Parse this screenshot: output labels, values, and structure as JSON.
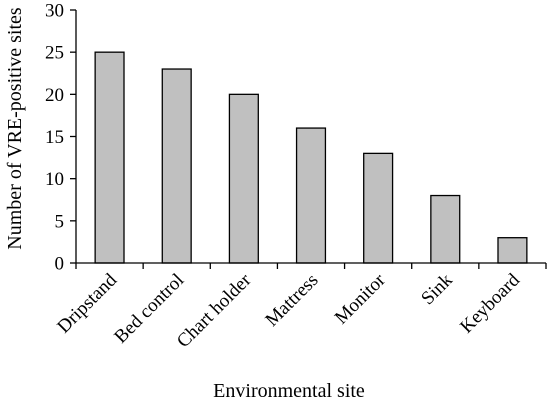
{
  "chart_data": {
    "type": "bar",
    "categories": [
      "Dripstand",
      "Bed control",
      "Chart holder",
      "Mattress",
      "Monitor",
      "Sink",
      "Keyboard"
    ],
    "values": [
      25,
      23,
      20,
      16,
      13,
      8,
      3
    ],
    "xlabel": "Environmental site",
    "ylabel": "Number of VRE-positive sites",
    "ylim": [
      0,
      30
    ],
    "yticks": [
      0,
      5,
      10,
      15,
      20,
      25,
      30
    ],
    "grid": false,
    "legend": "none",
    "colors": {
      "bar_fill": "#c0c0c0",
      "bar_stroke": "#000000"
    }
  }
}
